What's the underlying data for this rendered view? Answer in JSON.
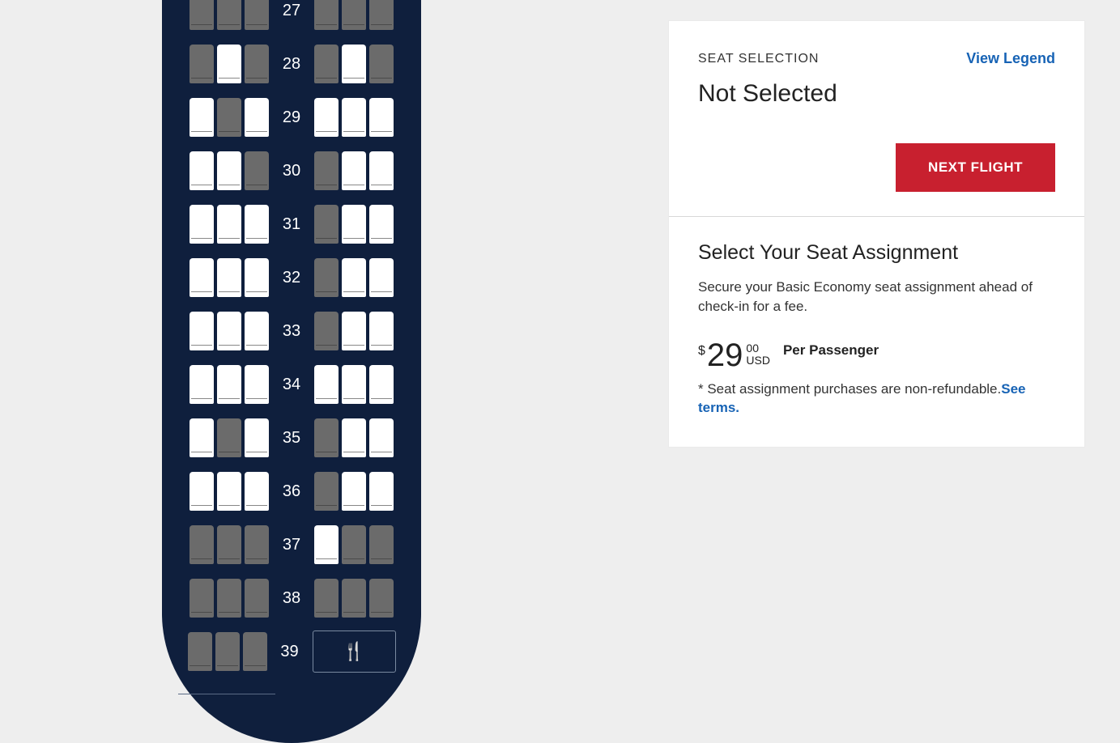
{
  "colors": {
    "page_bg": "#eeeeee",
    "plane_bg": "#0f1f3d",
    "seat_available": "#ffffff",
    "seat_occupied": "#6b6b6b",
    "row_label": "#ffffff",
    "panel_bg": "#ffffff",
    "link_blue": "#1763b5",
    "btn_red": "#c8202f",
    "btn_text": "#ffffff",
    "text_dark": "#222222",
    "text_body": "#333333",
    "divider": "#d8d8d8",
    "galley_border": "#7a8aa0"
  },
  "seat_map": {
    "row_label_fontsize": 20,
    "seat_width": 30,
    "seat_height": 48,
    "rows": [
      {
        "num": 27,
        "left": [
          "occupied",
          "occupied",
          "occupied"
        ],
        "right": [
          "occupied",
          "occupied",
          "occupied"
        ]
      },
      {
        "num": 28,
        "left": [
          "occupied",
          "available",
          "occupied"
        ],
        "right": [
          "occupied",
          "available",
          "occupied"
        ]
      },
      {
        "num": 29,
        "left": [
          "available",
          "occupied",
          "available"
        ],
        "right": [
          "available",
          "available",
          "available"
        ]
      },
      {
        "num": 30,
        "left": [
          "available",
          "available",
          "occupied"
        ],
        "right": [
          "occupied",
          "available",
          "available"
        ]
      },
      {
        "num": 31,
        "left": [
          "available",
          "available",
          "available"
        ],
        "right": [
          "occupied",
          "available",
          "available"
        ]
      },
      {
        "num": 32,
        "left": [
          "available",
          "available",
          "available"
        ],
        "right": [
          "occupied",
          "available",
          "available"
        ]
      },
      {
        "num": 33,
        "left": [
          "available",
          "available",
          "available"
        ],
        "right": [
          "occupied",
          "available",
          "available"
        ]
      },
      {
        "num": 34,
        "left": [
          "available",
          "available",
          "available"
        ],
        "right": [
          "available",
          "available",
          "available"
        ]
      },
      {
        "num": 35,
        "left": [
          "available",
          "occupied",
          "available"
        ],
        "right": [
          "occupied",
          "available",
          "available"
        ]
      },
      {
        "num": 36,
        "left": [
          "available",
          "available",
          "available"
        ],
        "right": [
          "occupied",
          "available",
          "available"
        ]
      },
      {
        "num": 37,
        "left": [
          "occupied",
          "occupied",
          "occupied"
        ],
        "right": [
          "available",
          "occupied",
          "occupied"
        ]
      },
      {
        "num": 38,
        "left": [
          "occupied",
          "occupied",
          "occupied"
        ],
        "right": [
          "occupied",
          "occupied",
          "occupied"
        ]
      },
      {
        "num": 39,
        "left": [
          "occupied",
          "occupied",
          "occupied"
        ],
        "right": "galley"
      }
    ]
  },
  "panel": {
    "selection_label": "SEAT SELECTION",
    "legend_link": "View Legend",
    "status": "Not Selected",
    "next_button": "NEXT FLIGHT",
    "assign_title": "Select Your Seat Assignment",
    "assign_desc": "Secure your Basic Economy seat assignment ahead of check-in for a fee.",
    "price": {
      "symbol": "$",
      "amount": "29",
      "cents": "00",
      "currency": "USD"
    },
    "per_passenger": "Per Passenger",
    "disclaimer": "* Seat assignment purchases are non-refundable.",
    "see_terms": "See terms."
  }
}
